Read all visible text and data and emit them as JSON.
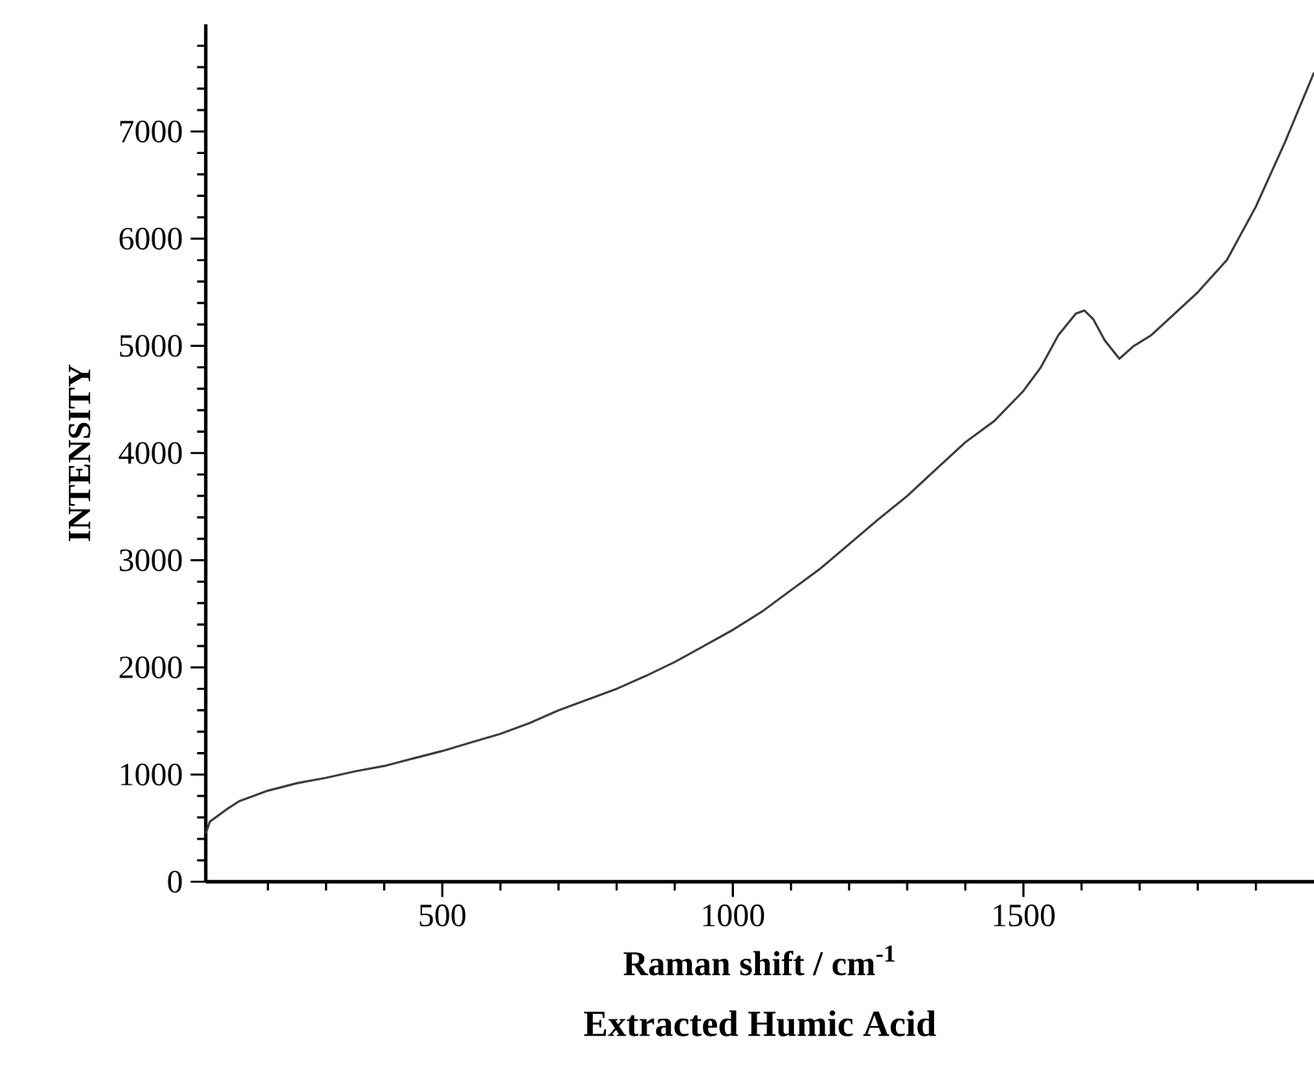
{
  "chart_data": {
    "type": "line",
    "title": "Extracted  Humic Acid",
    "xlabel": "Raman shift / cm$^{-1}$",
    "ylabel": "INTENSITY",
    "x": [
      93,
      100,
      130,
      150,
      200,
      250,
      300,
      350,
      400,
      450,
      500,
      550,
      600,
      650,
      700,
      750,
      800,
      850,
      900,
      950,
      1000,
      1050,
      1100,
      1150,
      1200,
      1250,
      1300,
      1350,
      1400,
      1450,
      1500,
      1530,
      1560,
      1590,
      1605,
      1620,
      1640,
      1665,
      1690,
      1720,
      1750,
      1800,
      1850,
      1900,
      1950,
      2000
    ],
    "series": [
      {
        "color": "#3a3a3a",
        "values": [
          450,
          560,
          680,
          750,
          850,
          920,
          970,
          1030,
          1080,
          1150,
          1220,
          1300,
          1380,
          1480,
          1600,
          1700,
          1800,
          1920,
          2050,
          2200,
          2350,
          2520,
          2720,
          2920,
          3150,
          3380,
          3600,
          3850,
          4100,
          4300,
          4580,
          4800,
          5100,
          5300,
          5330,
          5250,
          5050,
          4880,
          5000,
          5100,
          5250,
          5500,
          5800,
          6300,
          6900,
          7550
        ]
      }
    ],
    "xlim": [
      93,
      2000
    ],
    "ylim": [
      0,
      8000
    ],
    "xticks": [
      {
        "value": 200,
        "label": null
      },
      {
        "value": 300,
        "label": null
      },
      {
        "value": 400,
        "label": null
      },
      500,
      {
        "value": 600,
        "label": null
      },
      {
        "value": 700,
        "label": null
      },
      {
        "value": 800,
        "label": null
      },
      {
        "value": 900,
        "label": null
      },
      1000,
      {
        "value": 1100,
        "label": null
      },
      {
        "value": 1200,
        "label": null
      },
      {
        "value": 1300,
        "label": null
      },
      {
        "value": 1400,
        "label": null
      },
      1500,
      {
        "value": 1600,
        "label": null
      },
      {
        "value": 1700,
        "label": null
      },
      {
        "value": 1800,
        "label": null
      },
      {
        "value": 1900,
        "label": null
      }
    ],
    "yticks": [
      0,
      {
        "value": 200,
        "label": null
      },
      {
        "value": 400,
        "label": null
      },
      {
        "value": 600,
        "label": null
      },
      {
        "value": 800,
        "label": null
      },
      1000,
      {
        "value": 1200,
        "label": null
      },
      {
        "value": 1400,
        "label": null
      },
      {
        "value": 1600,
        "label": null
      },
      {
        "value": 1800,
        "label": null
      },
      2000,
      {
        "value": 2200,
        "label": null
      },
      {
        "value": 2400,
        "label": null
      },
      {
        "value": 2600,
        "label": null
      },
      {
        "value": 2800,
        "label": null
      },
      3000,
      {
        "value": 3200,
        "label": null
      },
      {
        "value": 3400,
        "label": null
      },
      {
        "value": 3600,
        "label": null
      },
      {
        "value": 3800,
        "label": null
      },
      4000,
      {
        "value": 4200,
        "label": null
      },
      {
        "value": 4400,
        "label": null
      },
      {
        "value": 4600,
        "label": null
      },
      {
        "value": 4800,
        "label": null
      },
      5000,
      {
        "value": 5200,
        "label": null
      },
      {
        "value": 5400,
        "label": null
      },
      {
        "value": 5600,
        "label": null
      },
      {
        "value": 5800,
        "label": null
      },
      6000,
      {
        "value": 6200,
        "label": null
      },
      {
        "value": 6400,
        "label": null
      },
      {
        "value": 6600,
        "label": null
      },
      {
        "value": 6800,
        "label": null
      },
      7000,
      {
        "value": 7200,
        "label": null
      },
      {
        "value": 7400,
        "label": null
      },
      {
        "value": 7600,
        "label": null
      },
      {
        "value": 7800,
        "label": null
      }
    ],
    "grid": false,
    "marker": "none",
    "line_style": "solid"
  }
}
